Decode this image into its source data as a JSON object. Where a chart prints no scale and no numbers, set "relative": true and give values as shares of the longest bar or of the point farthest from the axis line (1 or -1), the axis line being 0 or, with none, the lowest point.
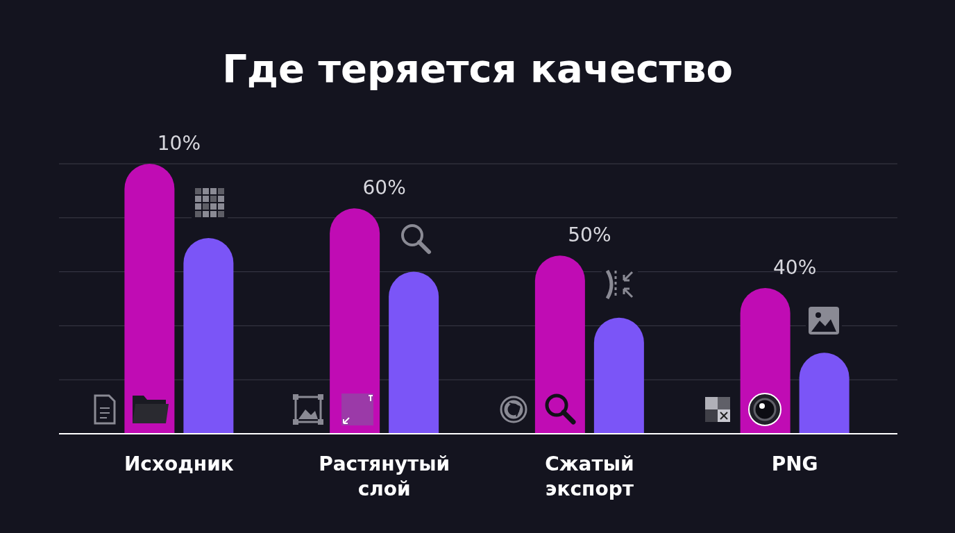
{
  "chart_data": {
    "type": "bar",
    "title": "Где теряется качество",
    "categories": [
      "Исходник",
      "Растянутый слой",
      "Сжатый экспорт",
      "PNG"
    ],
    "relative": true,
    "grid": true,
    "series": [
      {
        "color": "#c00cb4",
        "values": [
          1,
          0.835,
          0.66,
          0.54
        ]
      },
      {
        "color": "#7b55f7",
        "values": [
          0.725,
          0.6,
          0.43,
          0.3
        ]
      }
    ],
    "annotations": [
      "10%",
      "60%",
      "50%",
      "40%"
    ]
  }
}
